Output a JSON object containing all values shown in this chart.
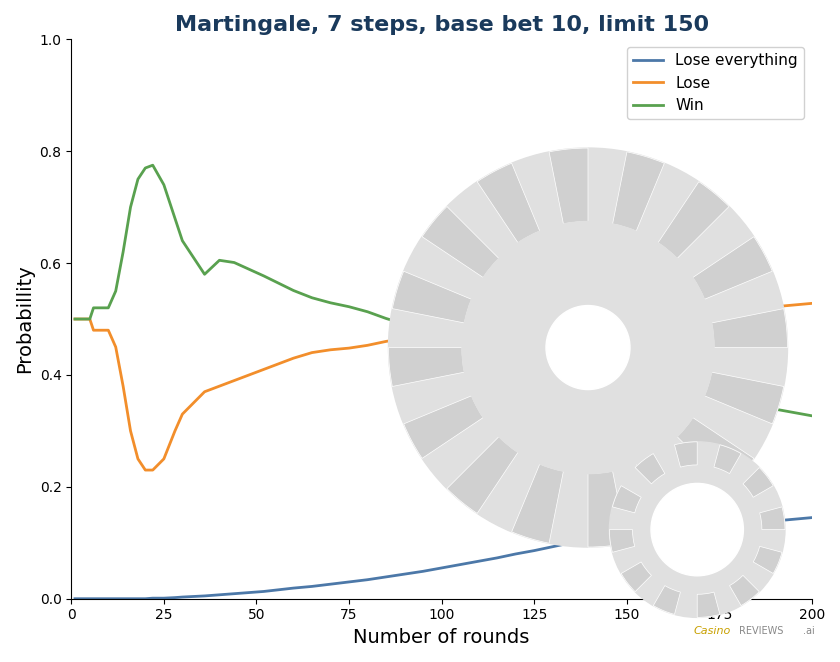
{
  "title": "Martingale, 7 steps, base bet 10, limit 150",
  "xlabel": "Number of rounds",
  "ylabel": "Probabillity",
  "xlim": [
    1,
    200
  ],
  "ylim": [
    0,
    1.0
  ],
  "xticks": [
    0,
    25,
    50,
    75,
    100,
    125,
    150,
    175,
    200
  ],
  "yticks": [
    0,
    0.2,
    0.4,
    0.6,
    0.8,
    1.0
  ],
  "title_color": "#1a3a5c",
  "title_fontsize": 16,
  "axis_label_fontsize": 14,
  "line_width": 2.0,
  "colors": {
    "lose_everything": "#4c78a8",
    "lose": "#f28e2b",
    "win": "#59a14f"
  },
  "legend_labels": [
    "Lose everything",
    "Lose",
    "Win"
  ],
  "rounds": [
    1,
    2,
    3,
    4,
    5,
    6,
    7,
    8,
    9,
    10,
    12,
    14,
    16,
    18,
    20,
    22,
    25,
    28,
    30,
    33,
    36,
    40,
    44,
    48,
    52,
    56,
    60,
    65,
    70,
    75,
    80,
    85,
    90,
    95,
    100,
    105,
    110,
    115,
    120,
    125,
    130,
    135,
    140,
    145,
    150,
    155,
    160,
    165,
    170,
    175,
    180,
    185,
    190,
    195,
    200
  ],
  "lose_everything": [
    0.0,
    0.0,
    0.0,
    0.0,
    0.0,
    0.0,
    0.0,
    0.0,
    0.0,
    0.0,
    0.0,
    0.0,
    0.0,
    0.0,
    0.0,
    0.001,
    0.001,
    0.002,
    0.003,
    0.004,
    0.005,
    0.007,
    0.009,
    0.011,
    0.013,
    0.016,
    0.019,
    0.022,
    0.026,
    0.03,
    0.034,
    0.039,
    0.044,
    0.049,
    0.055,
    0.061,
    0.067,
    0.073,
    0.08,
    0.086,
    0.093,
    0.1,
    0.107,
    0.114,
    0.121,
    0.128,
    0.135,
    0.13,
    0.137,
    0.13,
    0.133,
    0.136,
    0.139,
    0.142,
    0.145
  ],
  "lose": [
    0.5,
    0.5,
    0.5,
    0.5,
    0.5,
    0.48,
    0.48,
    0.48,
    0.48,
    0.48,
    0.45,
    0.38,
    0.3,
    0.25,
    0.23,
    0.23,
    0.25,
    0.3,
    0.33,
    0.35,
    0.37,
    0.38,
    0.39,
    0.4,
    0.41,
    0.42,
    0.43,
    0.44,
    0.445,
    0.448,
    0.453,
    0.46,
    0.465,
    0.468,
    0.472,
    0.476,
    0.48,
    0.482,
    0.485,
    0.488,
    0.49,
    0.493,
    0.496,
    0.499,
    0.501,
    0.503,
    0.505,
    0.508,
    0.51,
    0.513,
    0.516,
    0.519,
    0.522,
    0.525,
    0.528
  ],
  "win": [
    0.5,
    0.5,
    0.5,
    0.5,
    0.5,
    0.52,
    0.52,
    0.52,
    0.52,
    0.52,
    0.55,
    0.62,
    0.7,
    0.75,
    0.77,
    0.775,
    0.74,
    0.68,
    0.64,
    0.61,
    0.58,
    0.605,
    0.601,
    0.589,
    0.577,
    0.564,
    0.551,
    0.538,
    0.529,
    0.522,
    0.513,
    0.501,
    0.491,
    0.483,
    0.473,
    0.463,
    0.453,
    0.445,
    0.435,
    0.426,
    0.417,
    0.407,
    0.397,
    0.387,
    0.378,
    0.369,
    0.36,
    0.362,
    0.353,
    0.357,
    0.351,
    0.345,
    0.339,
    0.333,
    0.327
  ]
}
